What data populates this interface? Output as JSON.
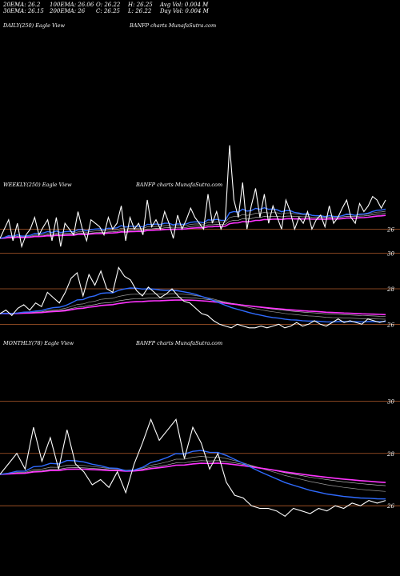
{
  "header": {
    "col1": [
      "20EMA: 26.2",
      "30EMA: 26.15"
    ],
    "col2": [
      "100EMA: 26.06",
      "200EMA: 26"
    ],
    "col3": [
      "O: 26.22",
      "C: 26.25"
    ],
    "col4": [
      "H: 26.25",
      "L: 26.22"
    ],
    "col5": [
      "Avg Vol: 0.004 M",
      "Day Vol: 0.004 M"
    ]
  },
  "panels": {
    "daily": {
      "title": "DAILY(250) Eagle  View",
      "brand": "BANFP charts  MunafaSutra.com"
    },
    "weekly": {
      "title": "WEEKLY(250) Eagle  View",
      "brand": "BANFP charts  MunafaSutra.com"
    },
    "monthly": {
      "title": "MONTHLY(78) Eagle  View",
      "brand": "BANFP charts  MunafaSutra.com"
    }
  },
  "colors": {
    "background": "#000000",
    "price": "#ffffff",
    "ema_fast": "#2f6bff",
    "ema_slow": "#ff33ff",
    "grid": "#b05a2a",
    "ema_gray": "#9a9a9a"
  },
  "chart_data": [
    {
      "type": "line",
      "title": "DAILY(250) Eagle View",
      "ylim": [
        25.7,
        26.8
      ],
      "yticks": [
        {
          "label": "26",
          "value": 26
        }
      ],
      "series": [
        {
          "values": [
            25.92,
            26.0,
            26.08,
            25.9,
            26.05,
            25.85,
            25.95,
            26.0,
            26.1,
            25.95,
            26.02,
            26.08,
            25.9,
            26.1,
            25.85,
            26.05,
            26.0,
            25.95,
            26.15,
            26.0,
            25.9,
            26.08,
            26.05,
            26.02,
            25.95,
            26.1,
            26.0,
            26.05,
            26.2,
            25.9,
            26.1,
            26.0,
            26.05,
            25.95,
            26.25,
            26.02,
            26.08,
            26.0,
            26.15,
            26.05,
            25.92,
            26.12,
            26.0,
            26.08,
            26.18,
            26.1,
            26.05,
            26.0,
            26.3,
            26.05,
            26.15,
            26.0,
            26.08,
            26.72,
            26.25,
            26.1,
            26.4,
            26.0,
            26.2,
            26.35,
            26.1,
            26.3,
            26.05,
            26.2,
            26.1,
            26.0,
            26.25,
            26.15,
            26.0,
            26.1,
            26.05,
            26.15,
            26.0,
            26.08,
            26.12,
            26.02,
            26.2,
            26.05,
            26.1,
            26.18,
            26.25,
            26.1,
            26.05,
            26.22,
            26.15,
            26.2,
            26.28,
            26.25,
            26.18,
            26.25
          ]
        }
      ],
      "ema_levels": [
        26.06,
        26.04,
        26.02,
        26.0
      ]
    },
    {
      "type": "line",
      "title": "WEEKLY(250) Eagle View",
      "ylim": [
        25.7,
        31.2
      ],
      "yticks": [
        {
          "label": "30",
          "value": 30
        },
        {
          "label": "28",
          "value": 28
        },
        {
          "label": "26",
          "value": 26
        }
      ],
      "series": [
        {
          "values": [
            26.6,
            26.8,
            26.5,
            26.9,
            27.1,
            26.8,
            27.2,
            27.0,
            27.8,
            27.5,
            27.2,
            27.8,
            28.6,
            28.9,
            27.6,
            28.8,
            28.2,
            29.0,
            28.0,
            27.8,
            29.2,
            28.7,
            28.5,
            27.9,
            27.6,
            28.1,
            27.8,
            27.5,
            27.7,
            28.0,
            27.6,
            27.3,
            27.2,
            26.9,
            26.6,
            26.5,
            26.2,
            26.0,
            25.9,
            25.8,
            26.0,
            25.9,
            25.8,
            25.8,
            25.9,
            25.8,
            25.9,
            26.0,
            25.8,
            25.9,
            26.1,
            25.9,
            26.0,
            26.2,
            26.0,
            25.9,
            26.1,
            26.3,
            26.1,
            26.2,
            26.1,
            26.0,
            26.3,
            26.2,
            26.1,
            26.2
          ]
        }
      ]
    },
    {
      "type": "line",
      "title": "MONTHLY(78) Eagle View",
      "ylim": [
        25.7,
        30.5
      ],
      "yticks": [
        {
          "label": "30",
          "value": 30
        },
        {
          "label": "28",
          "value": 28
        },
        {
          "label": "26",
          "value": 26
        }
      ],
      "series": [
        {
          "values": [
            27.2,
            27.6,
            28.0,
            27.4,
            29.0,
            27.7,
            28.6,
            27.4,
            28.9,
            27.6,
            27.3,
            26.8,
            27.0,
            26.7,
            27.3,
            26.5,
            27.6,
            28.4,
            29.3,
            28.5,
            28.9,
            29.3,
            27.8,
            29.0,
            28.4,
            27.4,
            28.0,
            26.9,
            26.4,
            26.3,
            26.0,
            25.9,
            25.9,
            25.8,
            25.6,
            25.9,
            25.8,
            25.7,
            25.9,
            25.8,
            26.0,
            25.9,
            26.1,
            26.0,
            26.2,
            26.1,
            26.2
          ]
        }
      ]
    }
  ]
}
